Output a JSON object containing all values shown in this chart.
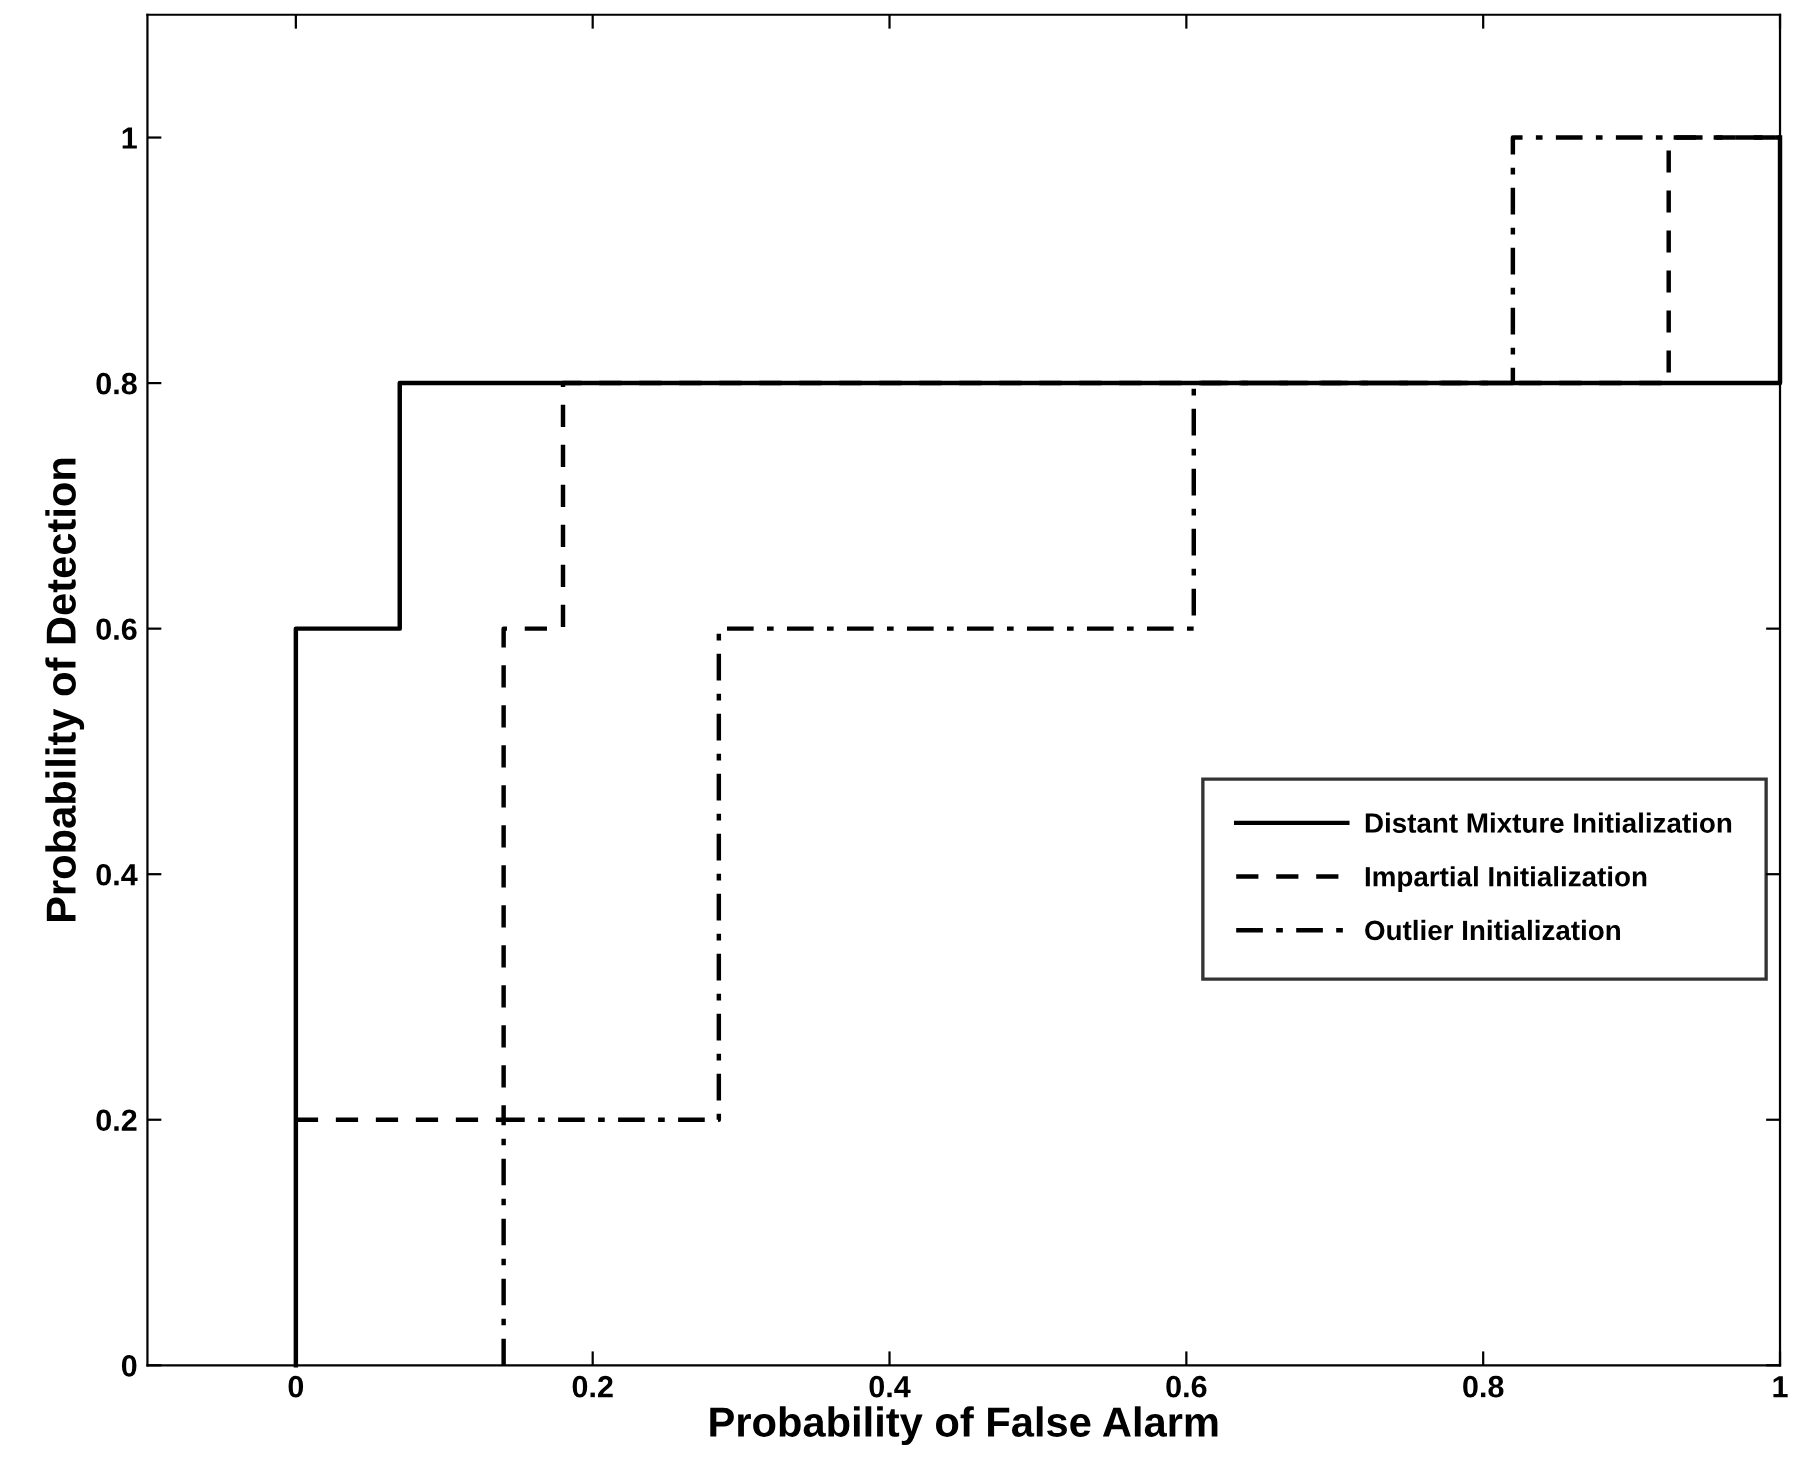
{
  "chart_data": {
    "type": "line",
    "xlabel": "Probability of False Alarm",
    "ylabel": "Probability of Detection",
    "xlim": [
      -0.1,
      1.0
    ],
    "ylim": [
      0,
      1.1
    ],
    "xticks": [
      0,
      0.2,
      0.4,
      0.6,
      0.8,
      1
    ],
    "yticks": [
      0,
      0.2,
      0.4,
      0.6,
      0.8,
      1
    ],
    "grid": false,
    "legend": "right",
    "marker": "none",
    "series": [
      {
        "name": "Distant Mixture Initialization",
        "color": "#000000",
        "line_style": "solid",
        "x": [
          0,
          0,
          0.07,
          0.07,
          1,
          1
        ],
        "values": [
          0,
          0.6,
          0.6,
          0.8,
          0.8,
          1
        ]
      },
      {
        "name": "Impartial Initialization",
        "color": "#000000",
        "line_style": "dashed",
        "x": [
          0,
          0.14,
          0.14,
          0.18,
          0.18,
          0.925,
          0.925,
          1
        ],
        "values": [
          0.2,
          0.2,
          0.6,
          0.6,
          0.8,
          0.8,
          1,
          1
        ]
      },
      {
        "name": "Outlier Initialization",
        "color": "#000000",
        "line_style": "dashdot",
        "x": [
          0.14,
          0.14,
          0.285,
          0.285,
          0.605,
          0.605,
          0.82,
          0.82,
          1
        ],
        "values": [
          0,
          0.2,
          0.2,
          0.6,
          0.6,
          0.8,
          0.8,
          1,
          1
        ]
      }
    ]
  }
}
